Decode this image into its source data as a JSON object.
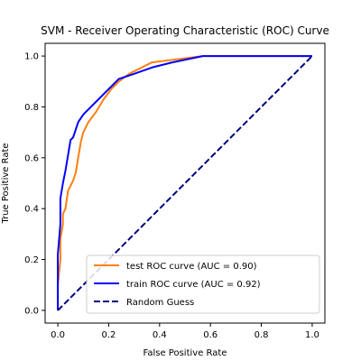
{
  "chart_data": {
    "type": "line",
    "title": "SVM - Receiver Operating Characteristic (ROC) Curve",
    "xlabel": "False Positive Rate",
    "ylabel": "True Positive Rate",
    "xlim": [
      -0.05,
      1.05
    ],
    "ylim": [
      -0.05,
      1.05
    ],
    "xticks": [
      "0.0",
      "0.2",
      "0.4",
      "0.6",
      "0.8",
      "1.0"
    ],
    "yticks": [
      "0.0",
      "0.2",
      "0.4",
      "0.6",
      "0.8",
      "1.0"
    ],
    "grid": false,
    "legend_position": "lower-right",
    "series": [
      {
        "name": "test ROC curve (AUC = 0.90)",
        "color": "#ff7f0e",
        "style": "solid",
        "x": [
          0.0,
          0.0,
          0.01,
          0.01,
          0.02,
          0.02,
          0.03,
          0.04,
          0.05,
          0.06,
          0.07,
          0.08,
          0.09,
          0.1,
          0.12,
          0.15,
          0.18,
          0.21,
          0.24,
          0.28,
          0.32,
          0.37,
          0.45,
          0.57,
          1.0
        ],
        "y": [
          0.0,
          0.1,
          0.2,
          0.28,
          0.34,
          0.38,
          0.4,
          0.47,
          0.49,
          0.51,
          0.54,
          0.6,
          0.66,
          0.7,
          0.74,
          0.78,
          0.83,
          0.87,
          0.9,
          0.93,
          0.95,
          0.975,
          0.985,
          1.0,
          1.0
        ]
      },
      {
        "name": "train ROC curve (AUC = 0.92)",
        "color": "#0000ff",
        "style": "solid",
        "x": [
          0.0,
          0.0,
          0.01,
          0.01,
          0.02,
          0.03,
          0.04,
          0.05,
          0.06,
          0.07,
          0.08,
          0.1,
          0.13,
          0.16,
          0.2,
          0.24,
          0.3,
          0.37,
          0.45,
          0.57,
          1.0
        ],
        "y": [
          0.0,
          0.22,
          0.34,
          0.44,
          0.5,
          0.55,
          0.61,
          0.67,
          0.68,
          0.71,
          0.74,
          0.77,
          0.8,
          0.83,
          0.87,
          0.91,
          0.93,
          0.955,
          0.975,
          1.0,
          1.0
        ]
      },
      {
        "name": "Random Guess",
        "color": "#000080",
        "style": "dashed",
        "x": [
          0.0,
          1.0
        ],
        "y": [
          0.0,
          1.0
        ]
      }
    ]
  }
}
